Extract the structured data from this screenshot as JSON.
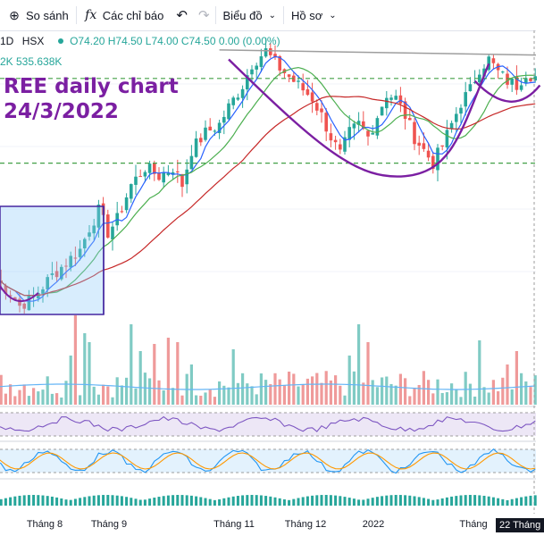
{
  "toolbar": {
    "compare_label": "So sánh",
    "indicators_label": "Các chỉ báo",
    "chart_type_label": "Biểu đồ",
    "profile_label": "Hồ sơ",
    "compare_icon": "plus-circle-icon",
    "indicators_icon": "fx-icon",
    "undo_icon": "undo-icon",
    "redo_icon": "redo-icon",
    "chart_type_icon": "chevron-down-icon",
    "profile_icon": "chevron-down-icon"
  },
  "legend": {
    "interval": "1D",
    "exchange": "HSX",
    "ohlc_text": "O74.20 H74.50 L74.00 C74.50 0.00 (0.00%)",
    "volume_text": "2K  535.638K"
  },
  "annotation": {
    "line1": "REE daily chart",
    "line2": "24/3/2022"
  },
  "colors": {
    "up": "#26a69a",
    "down": "#ef5350",
    "annotation": "#7b1fa2",
    "ma_fast": "#2962ff",
    "ma_mid": "#4caf50",
    "ma_slow": "#c62828",
    "rsi": "#7e57c2",
    "stoch_k": "#2196f3",
    "stoch_d": "#ff9800"
  },
  "chart_data": {
    "type": "candlestick",
    "x_tick_labels": [
      "Tháng 8",
      "Tháng 9",
      "Tháng 11",
      "Tháng 12",
      "2022",
      "Tháng"
    ],
    "crosshair_date_label": "22 Tháng",
    "price_anchors": [
      [
        0,
        55.0
      ],
      [
        3,
        53.5
      ],
      [
        5,
        52.0
      ],
      [
        8,
        53.0
      ],
      [
        12,
        55.5
      ],
      [
        15,
        57.0
      ],
      [
        18,
        58.5
      ],
      [
        20,
        61.0
      ],
      [
        22,
        63.0
      ],
      [
        24,
        60.5
      ],
      [
        26,
        62.0
      ],
      [
        29,
        66.0
      ],
      [
        32,
        68.0
      ],
      [
        35,
        67.0
      ],
      [
        38,
        68.0
      ],
      [
        40,
        66.0
      ],
      [
        42,
        70.0
      ],
      [
        45,
        72.0
      ],
      [
        48,
        73.0
      ],
      [
        50,
        75.0
      ],
      [
        53,
        77.5
      ],
      [
        55,
        80.0
      ],
      [
        58,
        81.5
      ],
      [
        60,
        80.0
      ],
      [
        63,
        78.5
      ],
      [
        65,
        77.5
      ],
      [
        68,
        76.0
      ],
      [
        70,
        74.0
      ],
      [
        72,
        71.5
      ],
      [
        74,
        69.5
      ],
      [
        76,
        72.0
      ],
      [
        78,
        73.0
      ],
      [
        80,
        71.5
      ],
      [
        82,
        74.0
      ],
      [
        84,
        76.5
      ],
      [
        86,
        76.0
      ],
      [
        88,
        74.0
      ],
      [
        90,
        71.5
      ],
      [
        92,
        70.0
      ],
      [
        94,
        68.5
      ],
      [
        96,
        70.5
      ],
      [
        98,
        73.0
      ],
      [
        100,
        75.5
      ],
      [
        102,
        77.0
      ],
      [
        104,
        79.5
      ],
      [
        106,
        80.5
      ],
      [
        108,
        79.0
      ],
      [
        110,
        78.0
      ],
      [
        112,
        77.5
      ],
      [
        114,
        79.0
      ],
      [
        116,
        78.5
      ]
    ],
    "support_levels": [
      68.5,
      78.3
    ],
    "volume_profile": "mostly low bars with spikes in early August, September and January",
    "rsi_band": [
      30,
      70
    ],
    "stoch_band": [
      20,
      80
    ]
  }
}
